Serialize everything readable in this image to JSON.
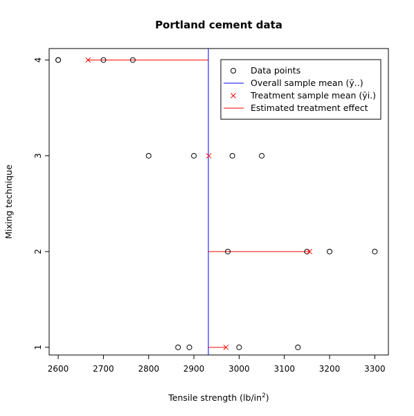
{
  "chart_data": {
    "type": "scatter",
    "title": "Portland cement data",
    "xlabel": "Tensile strength (lb/in",
    "xlabel_sup": "2",
    "xlabel_end": ")",
    "ylabel": "Mixing technique",
    "xlim": [
      2580,
      3330
    ],
    "ylim": [
      0.92,
      4.12
    ],
    "x_ticks": [
      2600,
      2700,
      2800,
      2900,
      3000,
      3100,
      3200,
      3300
    ],
    "y_ticks": [
      1,
      2,
      3,
      4
    ],
    "points": [
      {
        "technique": 4,
        "values": [
          2600,
          2600,
          2700,
          2765
        ]
      },
      {
        "technique": 3,
        "values": [
          2800,
          2900,
          2985,
          3050
        ]
      },
      {
        "technique": 2,
        "values": [
          2975,
          3150,
          3200,
          3300
        ]
      },
      {
        "technique": 1,
        "values": [
          2865,
          2890,
          3000,
          3130
        ]
      }
    ],
    "overall_mean": 2932,
    "treatment_means": [
      {
        "technique": 1,
        "mean": 2971
      },
      {
        "technique": 2,
        "mean": 3156
      },
      {
        "technique": 3,
        "mean": 2933
      },
      {
        "technique": 4,
        "mean": 2666
      }
    ],
    "legend": {
      "placement": "top-right",
      "entries": [
        {
          "label": "Data points",
          "marker": "circle",
          "color": "#000000"
        },
        {
          "label": "Overall sample mean (ȳ..)",
          "marker": "vline",
          "color": "#0000ff"
        },
        {
          "label": "Treatment sample mean (ȳi.)",
          "marker": "cross",
          "color": "#ff0000"
        },
        {
          "label": "Estimated treatment effect",
          "marker": "hline",
          "color": "#ff0000"
        }
      ]
    },
    "colors": {
      "points": "#000000",
      "overall_mean": "#0000ff",
      "treatment": "#ff0000"
    }
  }
}
